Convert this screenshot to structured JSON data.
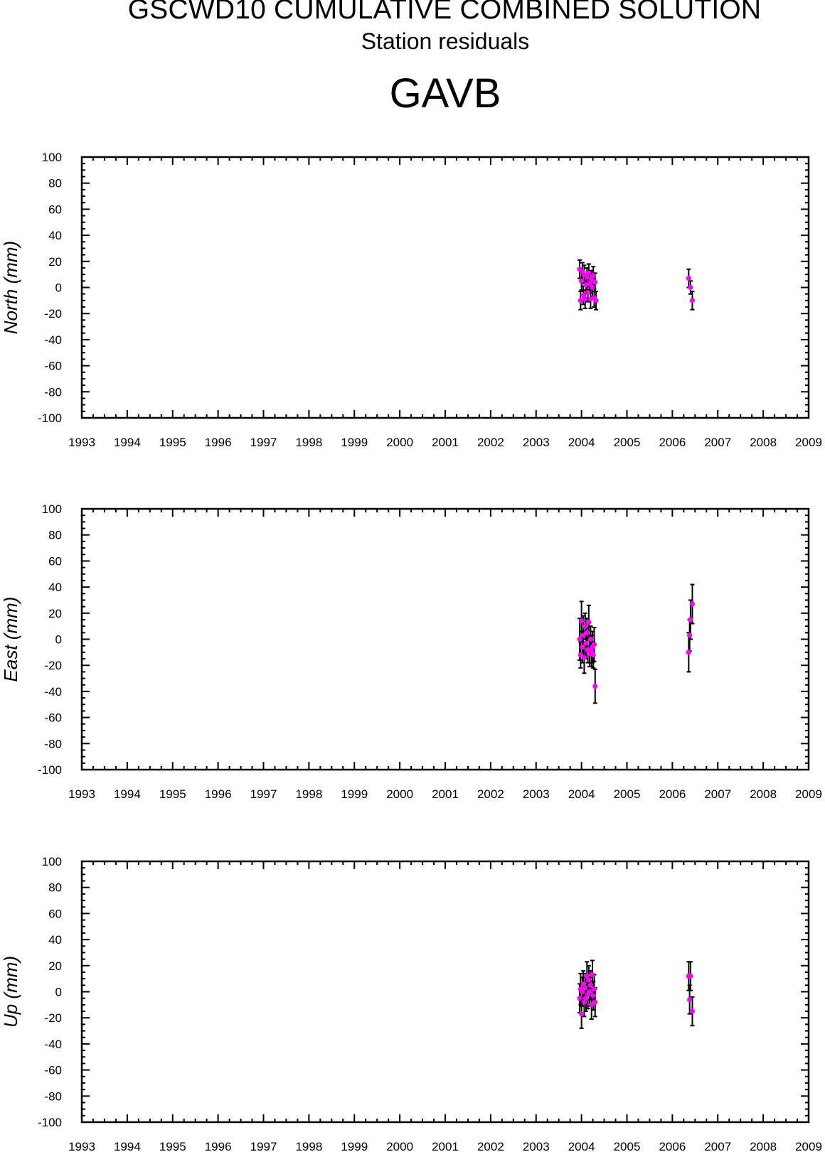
{
  "header": {
    "title": "GSCWD10 CUMULATIVE COMBINED SOLUTION",
    "subtitle": "Station residuals",
    "station": "GAVB"
  },
  "colors": {
    "point": "#ff00ff",
    "errorbar": "#000000",
    "axis": "#000000"
  },
  "chart_data": [
    {
      "type": "scatter",
      "ylabel": "North (mm)",
      "xlim": [
        1993,
        2009
      ],
      "ylim": [
        -100,
        100
      ],
      "x_ticks": [
        "1993",
        "1994",
        "1995",
        "1996",
        "1997",
        "1998",
        "1999",
        "2000",
        "2001",
        "2002",
        "2003",
        "2004",
        "2005",
        "2006",
        "2007",
        "2008",
        "2009"
      ],
      "y_ticks": [
        "100",
        "80",
        "60",
        "40",
        "20",
        "0",
        "-20",
        "-40",
        "-60",
        "-80",
        "-100"
      ],
      "points": [
        {
          "x": 2003.96,
          "y": 14,
          "err": 7
        },
        {
          "x": 2003.98,
          "y": -10,
          "err": 7
        },
        {
          "x": 2004.0,
          "y": 5,
          "err": 7
        },
        {
          "x": 2004.02,
          "y": 12,
          "err": 7
        },
        {
          "x": 2004.04,
          "y": -6,
          "err": 7
        },
        {
          "x": 2004.06,
          "y": 10,
          "err": 7
        },
        {
          "x": 2004.08,
          "y": -9,
          "err": 7
        },
        {
          "x": 2004.1,
          "y": 2,
          "err": 7
        },
        {
          "x": 2004.12,
          "y": 8,
          "err": 7
        },
        {
          "x": 2004.14,
          "y": -4,
          "err": 7
        },
        {
          "x": 2004.16,
          "y": 11,
          "err": 7
        },
        {
          "x": 2004.18,
          "y": 3,
          "err": 7
        },
        {
          "x": 2004.2,
          "y": -9,
          "err": 7
        },
        {
          "x": 2004.22,
          "y": 6,
          "err": 7
        },
        {
          "x": 2004.24,
          "y": 0,
          "err": 7
        },
        {
          "x": 2004.26,
          "y": 9,
          "err": 7
        },
        {
          "x": 2004.28,
          "y": -8,
          "err": 7
        },
        {
          "x": 2004.3,
          "y": 4,
          "err": 7
        },
        {
          "x": 2004.32,
          "y": -10,
          "err": 7
        },
        {
          "x": 2006.36,
          "y": 7,
          "err": 7
        },
        {
          "x": 2006.4,
          "y": 0,
          "err": 5
        },
        {
          "x": 2006.44,
          "y": -10,
          "err": 7
        }
      ]
    },
    {
      "type": "scatter",
      "ylabel": "East (mm)",
      "xlim": [
        1993,
        2009
      ],
      "ylim": [
        -100,
        100
      ],
      "x_ticks": [
        "1993",
        "1994",
        "1995",
        "1996",
        "1997",
        "1998",
        "1999",
        "2000",
        "2001",
        "2002",
        "2003",
        "2004",
        "2005",
        "2006",
        "2007",
        "2008",
        "2009"
      ],
      "y_ticks": [
        "100",
        "80",
        "60",
        "40",
        "20",
        "0",
        "-20",
        "-40",
        "-60",
        "-80",
        "-100"
      ],
      "points": [
        {
          "x": 2003.96,
          "y": 0,
          "err": 16
        },
        {
          "x": 2003.98,
          "y": -12,
          "err": 10
        },
        {
          "x": 2004.0,
          "y": 14,
          "err": 15
        },
        {
          "x": 2004.02,
          "y": -6,
          "err": 12
        },
        {
          "x": 2004.04,
          "y": 3,
          "err": 15
        },
        {
          "x": 2004.06,
          "y": -14,
          "err": 12
        },
        {
          "x": 2004.08,
          "y": 10,
          "err": 10
        },
        {
          "x": 2004.1,
          "y": -3,
          "err": 12
        },
        {
          "x": 2004.12,
          "y": 5,
          "err": 11
        },
        {
          "x": 2004.14,
          "y": -8,
          "err": 10
        },
        {
          "x": 2004.16,
          "y": 13,
          "err": 13
        },
        {
          "x": 2004.18,
          "y": -11,
          "err": 10
        },
        {
          "x": 2004.2,
          "y": 0,
          "err": 10
        },
        {
          "x": 2004.22,
          "y": -9,
          "err": 12
        },
        {
          "x": 2004.24,
          "y": -6,
          "err": 12
        },
        {
          "x": 2004.26,
          "y": -12,
          "err": 10
        },
        {
          "x": 2004.28,
          "y": -4,
          "err": 13
        },
        {
          "x": 2004.3,
          "y": -36,
          "err": 13
        },
        {
          "x": 2006.36,
          "y": -10,
          "err": 15
        },
        {
          "x": 2006.38,
          "y": 3,
          "err": 12
        },
        {
          "x": 2006.4,
          "y": 15,
          "err": 15
        },
        {
          "x": 2006.44,
          "y": 27,
          "err": 15
        }
      ]
    },
    {
      "type": "scatter",
      "ylabel": "Up (mm)",
      "xlim": [
        1993,
        2009
      ],
      "ylim": [
        -100,
        100
      ],
      "x_ticks": [
        "1993",
        "1994",
        "1995",
        "1996",
        "1997",
        "1998",
        "1999",
        "2000",
        "2001",
        "2002",
        "2003",
        "2004",
        "2005",
        "2006",
        "2007",
        "2008",
        "2009"
      ],
      "y_ticks": [
        "100",
        "80",
        "60",
        "40",
        "20",
        "0",
        "-20",
        "-40",
        "-60",
        "-80",
        "-100"
      ],
      "points": [
        {
          "x": 2003.96,
          "y": -5,
          "err": 11
        },
        {
          "x": 2003.98,
          "y": 2,
          "err": 12
        },
        {
          "x": 2004.0,
          "y": -17,
          "err": 11
        },
        {
          "x": 2004.02,
          "y": 0,
          "err": 11
        },
        {
          "x": 2004.04,
          "y": 6,
          "err": 10
        },
        {
          "x": 2004.06,
          "y": -8,
          "err": 11
        },
        {
          "x": 2004.08,
          "y": 3,
          "err": 11
        },
        {
          "x": 2004.1,
          "y": -5,
          "err": 10
        },
        {
          "x": 2004.12,
          "y": 12,
          "err": 11
        },
        {
          "x": 2004.14,
          "y": -2,
          "err": 11
        },
        {
          "x": 2004.16,
          "y": 9,
          "err": 11
        },
        {
          "x": 2004.18,
          "y": 0,
          "err": 11
        },
        {
          "x": 2004.2,
          "y": 5,
          "err": 11
        },
        {
          "x": 2004.22,
          "y": -10,
          "err": 11
        },
        {
          "x": 2004.24,
          "y": 13,
          "err": 11
        },
        {
          "x": 2004.26,
          "y": -3,
          "err": 11
        },
        {
          "x": 2004.28,
          "y": 2,
          "err": 11
        },
        {
          "x": 2004.3,
          "y": -8,
          "err": 11
        },
        {
          "x": 2006.36,
          "y": 12,
          "err": 11
        },
        {
          "x": 2006.38,
          "y": -6,
          "err": 11
        },
        {
          "x": 2006.4,
          "y": 12,
          "err": 11
        },
        {
          "x": 2006.44,
          "y": -15,
          "err": 11
        }
      ]
    }
  ]
}
